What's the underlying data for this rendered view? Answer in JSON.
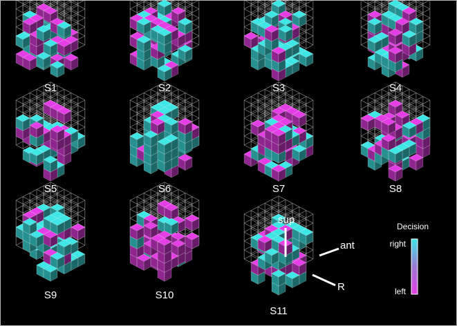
{
  "colors": {
    "background": "#000000",
    "border": "#b8b8b8",
    "right_color": "#3ee6e6",
    "left_color": "#e63ee6",
    "grid_color": "#d8d8d8",
    "axis_color": "#ffffff"
  },
  "panels": [
    {
      "label": "S1",
      "left_fraction": 0.45
    },
    {
      "label": "S2",
      "left_fraction": 0.4
    },
    {
      "label": "S3",
      "left_fraction": 0.42
    },
    {
      "label": "S4",
      "left_fraction": 0.38
    },
    {
      "label": "S5",
      "left_fraction": 0.5
    },
    {
      "label": "S6",
      "left_fraction": 0.25
    },
    {
      "label": "S7",
      "left_fraction": 0.65
    },
    {
      "label": "S8",
      "left_fraction": 0.6
    },
    {
      "label": "S9",
      "left_fraction": 0.35
    },
    {
      "label": "S10",
      "left_fraction": 0.75
    },
    {
      "label": "S11",
      "left_fraction": 0.45
    }
  ],
  "axes": {
    "superior": "sup",
    "anterior": "ant",
    "right": "R"
  },
  "legend": {
    "title": "Decision",
    "top": "right",
    "bottom": "left"
  }
}
